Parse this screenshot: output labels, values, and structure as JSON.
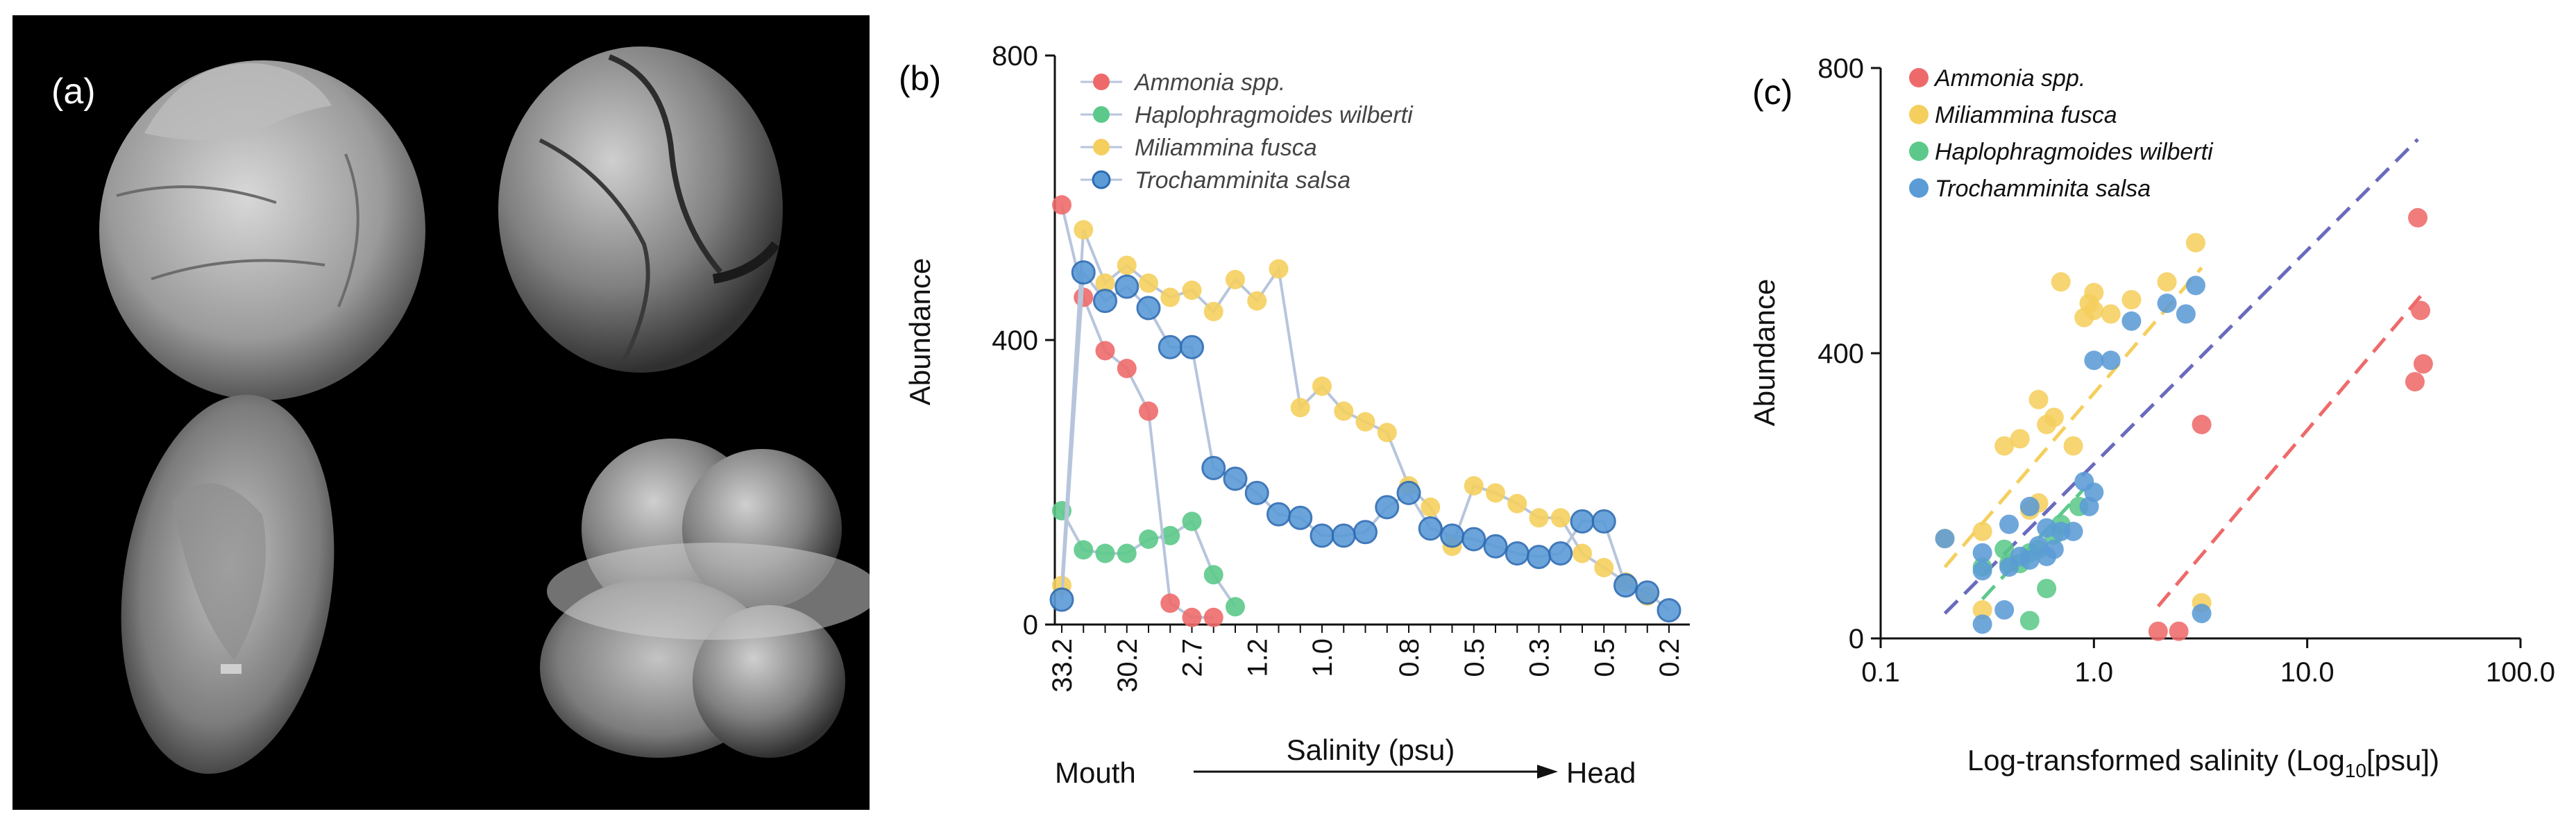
{
  "panel_a": {
    "label": "(a)"
  },
  "panel_b": {
    "label": "(b)",
    "mouth_label": "Mouth",
    "head_label": "Head",
    "xlabel": "Salinity (psu)",
    "ylabel": "Abundance"
  },
  "panel_c": {
    "label": "(c)",
    "xlabel_pre": "Log-transformed salinity (Log",
    "xlabel_sub": "10",
    "xlabel_post": "[psu])",
    "ylabel": "Abundance"
  },
  "colors": {
    "ammonia": "#ee6a6a",
    "haplo": "#5cc98a",
    "milia": "#f5cf5e",
    "trocho": "#5b9bd6",
    "fit_all": "#6a6abd"
  },
  "chart_data": [
    {
      "type": "line",
      "title": "(b)",
      "xlabel": "Salinity (psu)",
      "ylabel": "Abundance",
      "ylim": [
        0,
        800
      ],
      "yticks": [
        "0",
        "400",
        "800"
      ],
      "x_tick_labels": [
        "33.2",
        "30.2",
        "2.7",
        "1.2",
        "1.0",
        "0.8",
        "0.5",
        "0.3",
        "0.5",
        "0.2"
      ],
      "legend": [
        "Ammonia spp.",
        "Haplophragmoides wilberti",
        "Miliammina fusca",
        "Trochamminita salsa"
      ],
      "series": [
        {
          "name": "Ammonia spp.",
          "key": "ammonia",
          "values": [
            590,
            460,
            385,
            360,
            300,
            30,
            10,
            10
          ]
        },
        {
          "name": "Haplophragmoides wilberti",
          "key": "haplo",
          "values": [
            160,
            105,
            100,
            100,
            120,
            125,
            145,
            70,
            25
          ]
        },
        {
          "name": "Miliammina fusca",
          "key": "milia",
          "values": [
            55,
            555,
            480,
            505,
            480,
            460,
            470,
            440,
            485,
            455,
            500,
            305,
            335,
            300,
            285,
            270,
            195,
            165,
            110,
            195,
            185,
            170,
            150,
            150,
            100,
            80,
            60,
            40
          ]
        },
        {
          "name": "Trochamminita salsa",
          "key": "trocho",
          "values": [
            35,
            495,
            455,
            475,
            445,
            390,
            390,
            220,
            205,
            185,
            155,
            150,
            125,
            125,
            130,
            165,
            185,
            135,
            125,
            120,
            110,
            100,
            95,
            100,
            145,
            145,
            55,
            45,
            20
          ]
        }
      ]
    },
    {
      "type": "scatter",
      "title": "(c)",
      "xlabel": "Log-transformed salinity (Log10[psu])",
      "ylabel": "Abundance",
      "xscale": "log",
      "xlim": [
        0.1,
        100
      ],
      "ylim": [
        0,
        800
      ],
      "xticks": [
        "0.1",
        "1.0",
        "10.0",
        "100.0"
      ],
      "yticks": [
        "0",
        "400",
        "800"
      ],
      "legend": [
        "Ammonia spp.",
        "Miliammina fusca",
        "Haplophragmoides wilberti",
        "Trochamminita salsa"
      ],
      "series": [
        {
          "name": "Ammonia spp.",
          "key": "ammonia",
          "points": [
            [
              2.0,
              10
            ],
            [
              2.5,
              10
            ],
            [
              3.2,
              300
            ],
            [
              32,
              360
            ],
            [
              33,
              590
            ],
            [
              34,
              460
            ],
            [
              35,
              385
            ]
          ],
          "fit": [
            [
              2.0,
              45
            ],
            [
              34,
              480
            ]
          ]
        },
        {
          "name": "Miliammina fusca",
          "key": "milia",
          "points": [
            [
              0.2,
              140
            ],
            [
              0.3,
              150
            ],
            [
              0.3,
              40
            ],
            [
              0.38,
              270
            ],
            [
              0.45,
              280
            ],
            [
              0.5,
              180
            ],
            [
              0.55,
              190
            ],
            [
              0.55,
              335
            ],
            [
              0.6,
              300
            ],
            [
              0.65,
              310
            ],
            [
              0.7,
              500
            ],
            [
              0.8,
              270
            ],
            [
              0.9,
              450
            ],
            [
              0.95,
              470
            ],
            [
              1.0,
              485
            ],
            [
              1.0,
              460
            ],
            [
              1.2,
              455
            ],
            [
              1.5,
              475
            ],
            [
              2.2,
              500
            ],
            [
              3.0,
              555
            ],
            [
              3.2,
              50
            ]
          ],
          "fit": [
            [
              0.2,
              100
            ],
            [
              3.2,
              520
            ]
          ]
        },
        {
          "name": "Haplophragmoides wilberti",
          "key": "haplo",
          "points": [
            [
              0.3,
              100
            ],
            [
              0.38,
              125
            ],
            [
              0.4,
              105
            ],
            [
              0.45,
              105
            ],
            [
              0.5,
              120
            ],
            [
              0.5,
              25
            ],
            [
              0.55,
              125
            ],
            [
              0.6,
              70
            ],
            [
              0.65,
              145
            ],
            [
              0.7,
              160
            ],
            [
              0.85,
              185
            ]
          ],
          "fit": [
            [
              0.3,
              55
            ],
            [
              0.9,
              210
            ]
          ]
        },
        {
          "name": "Trochamminita salsa",
          "key": "trocho",
          "points": [
            [
              0.2,
              140
            ],
            [
              0.3,
              20
            ],
            [
              0.3,
              120
            ],
            [
              0.3,
              95
            ],
            [
              0.38,
              40
            ],
            [
              0.4,
              100
            ],
            [
              0.4,
              160
            ],
            [
              0.45,
              115
            ],
            [
              0.5,
              110
            ],
            [
              0.5,
              185
            ],
            [
              0.55,
              130
            ],
            [
              0.6,
              155
            ],
            [
              0.6,
              115
            ],
            [
              0.65,
              125
            ],
            [
              0.7,
              150
            ],
            [
              0.8,
              150
            ],
            [
              0.9,
              220
            ],
            [
              0.95,
              185
            ],
            [
              1.0,
              205
            ],
            [
              1.0,
              390
            ],
            [
              1.2,
              390
            ],
            [
              1.5,
              445
            ],
            [
              2.2,
              470
            ],
            [
              2.7,
              455
            ],
            [
              3.0,
              495
            ],
            [
              3.2,
              35
            ]
          ]
        }
      ],
      "fit_all": [
        [
          0.2,
          35
        ],
        [
          33,
          700
        ]
      ]
    }
  ]
}
